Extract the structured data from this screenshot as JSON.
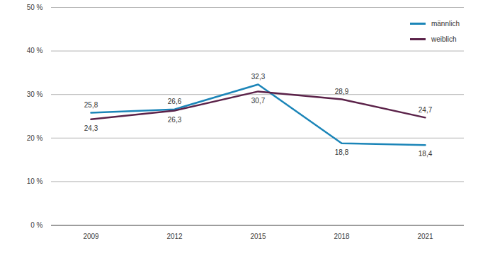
{
  "chart_data": {
    "type": "line",
    "x": [
      2009,
      2012,
      2015,
      2018,
      2021
    ],
    "series": [
      {
        "name": "männlich",
        "color": "#1b85b8",
        "values": [
          25.8,
          26.6,
          32.3,
          18.8,
          18.4
        ],
        "value_labels": [
          "25,8",
          "26,6",
          "32,3",
          "18,8",
          "18,4"
        ]
      },
      {
        "name": "weiblich",
        "color": "#5b2249",
        "values": [
          24.3,
          26.3,
          30.7,
          28.9,
          24.7
        ],
        "value_labels": [
          "24,3",
          "26,3",
          "30,7",
          "28,9",
          "24,7"
        ]
      }
    ],
    "ylim": [
      0,
      50
    ],
    "yticks": [
      {
        "value": 0,
        "label": "0 %"
      },
      {
        "value": 10,
        "label": "10 %"
      },
      {
        "value": 20,
        "label": "20 %"
      },
      {
        "value": 30,
        "label": "30 %"
      },
      {
        "value": 40,
        "label": "40 %"
      },
      {
        "value": 50,
        "label": "50 %"
      }
    ],
    "grid": true,
    "legend": "top-right",
    "data_labels": true
  }
}
